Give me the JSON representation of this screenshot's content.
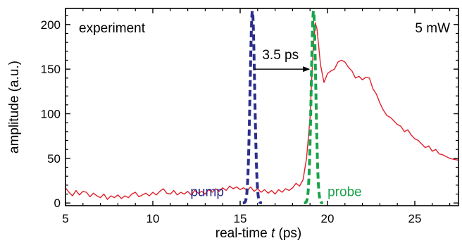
{
  "chart_data": {
    "type": "line",
    "xlabel_prefix": "real-time ",
    "xlabel_var": "t",
    "xlabel_suffix": " (ps)",
    "ylabel": "amplitude (a.u.)",
    "xlim": [
      5,
      27.5
    ],
    "ylim": [
      -3,
      218
    ],
    "x_ticks": [
      5,
      10,
      15,
      20,
      25
    ],
    "y_ticks": [
      0,
      50,
      100,
      150,
      200
    ],
    "grid": false,
    "annotations": {
      "left_label": "experiment",
      "right_label": "5 mW",
      "delay_label": "3.5 ps",
      "delay_arrow": {
        "x_from": 15.7,
        "x_to": 19.2,
        "y": 150
      },
      "pump_label": "pump",
      "probe_label": "probe"
    },
    "series": [
      {
        "style": "solid",
        "color": "#e0202a",
        "points": [
          [
            5.0,
            17
          ],
          [
            5.2,
            12
          ],
          [
            5.4,
            8
          ],
          [
            5.6,
            14
          ],
          [
            5.8,
            9
          ],
          [
            6.0,
            13
          ],
          [
            6.2,
            12
          ],
          [
            6.4,
            7
          ],
          [
            6.6,
            11
          ],
          [
            6.8,
            8
          ],
          [
            7.0,
            6
          ],
          [
            7.2,
            10
          ],
          [
            7.4,
            4
          ],
          [
            7.6,
            8
          ],
          [
            7.8,
            6
          ],
          [
            8.0,
            9
          ],
          [
            8.2,
            5
          ],
          [
            8.4,
            8
          ],
          [
            8.6,
            6
          ],
          [
            8.8,
            10
          ],
          [
            9.0,
            12
          ],
          [
            9.2,
            7
          ],
          [
            9.4,
            9
          ],
          [
            9.6,
            11
          ],
          [
            9.8,
            8
          ],
          [
            10.0,
            12
          ],
          [
            10.2,
            9
          ],
          [
            10.4,
            13
          ],
          [
            10.6,
            16
          ],
          [
            10.8,
            11
          ],
          [
            11.0,
            10
          ],
          [
            11.2,
            14
          ],
          [
            11.4,
            9
          ],
          [
            11.6,
            12
          ],
          [
            11.8,
            10
          ],
          [
            12.0,
            13
          ],
          [
            12.2,
            9
          ],
          [
            12.4,
            14
          ],
          [
            12.6,
            11
          ],
          [
            12.8,
            13
          ],
          [
            13.0,
            10
          ],
          [
            13.2,
            15
          ],
          [
            13.4,
            12
          ],
          [
            13.6,
            16
          ],
          [
            13.8,
            13
          ],
          [
            14.0,
            17
          ],
          [
            14.2,
            14
          ],
          [
            14.4,
            19
          ],
          [
            14.6,
            16
          ],
          [
            14.8,
            18
          ],
          [
            15.0,
            15
          ],
          [
            15.2,
            17
          ],
          [
            15.4,
            14
          ],
          [
            15.6,
            18
          ],
          [
            15.8,
            13
          ],
          [
            16.0,
            16
          ],
          [
            16.2,
            12
          ],
          [
            16.4,
            15
          ],
          [
            16.6,
            11
          ],
          [
            16.8,
            14
          ],
          [
            17.0,
            10
          ],
          [
            17.2,
            15
          ],
          [
            17.4,
            12
          ],
          [
            17.6,
            16
          ],
          [
            17.8,
            14
          ],
          [
            18.0,
            17
          ],
          [
            18.2,
            22
          ],
          [
            18.4,
            19
          ],
          [
            18.6,
            26
          ],
          [
            18.8,
            50
          ],
          [
            19.0,
            95
          ],
          [
            19.1,
            140
          ],
          [
            19.2,
            180
          ],
          [
            19.3,
            202
          ],
          [
            19.4,
            195
          ],
          [
            19.5,
            175
          ],
          [
            19.6,
            155
          ],
          [
            19.7,
            145
          ],
          [
            19.8,
            135
          ],
          [
            19.9,
            140
          ],
          [
            20.0,
            145
          ],
          [
            20.2,
            148
          ],
          [
            20.4,
            150
          ],
          [
            20.6,
            158
          ],
          [
            20.8,
            160
          ],
          [
            21.0,
            158
          ],
          [
            21.2,
            152
          ],
          [
            21.4,
            148
          ],
          [
            21.6,
            140
          ],
          [
            21.8,
            142
          ],
          [
            22.0,
            138
          ],
          [
            22.2,
            141
          ],
          [
            22.4,
            140
          ],
          [
            22.6,
            128
          ],
          [
            22.8,
            122
          ],
          [
            23.0,
            112
          ],
          [
            23.2,
            104
          ],
          [
            23.4,
            98
          ],
          [
            23.6,
            96
          ],
          [
            23.8,
            92
          ],
          [
            24.0,
            88
          ],
          [
            24.2,
            86
          ],
          [
            24.4,
            80
          ],
          [
            24.6,
            82
          ],
          [
            24.8,
            76
          ],
          [
            25.0,
            72
          ],
          [
            25.2,
            70
          ],
          [
            25.4,
            66
          ],
          [
            25.6,
            62
          ],
          [
            25.8,
            64
          ],
          [
            26.0,
            58
          ],
          [
            26.2,
            60
          ],
          [
            26.4,
            55
          ],
          [
            26.6,
            54
          ],
          [
            26.8,
            52
          ],
          [
            27.0,
            50
          ],
          [
            27.2,
            49
          ],
          [
            27.5,
            48
          ]
        ]
      },
      {
        "name": "pump",
        "style": "dashed",
        "color": "#2b2e8c",
        "shape": "gaussian",
        "center": 15.7,
        "sigma": 0.13,
        "amplitude": 215
      },
      {
        "name": "probe",
        "style": "dashed",
        "color": "#1aa34a",
        "shape": "gaussian",
        "center": 19.2,
        "sigma": 0.13,
        "amplitude": 215
      }
    ]
  }
}
